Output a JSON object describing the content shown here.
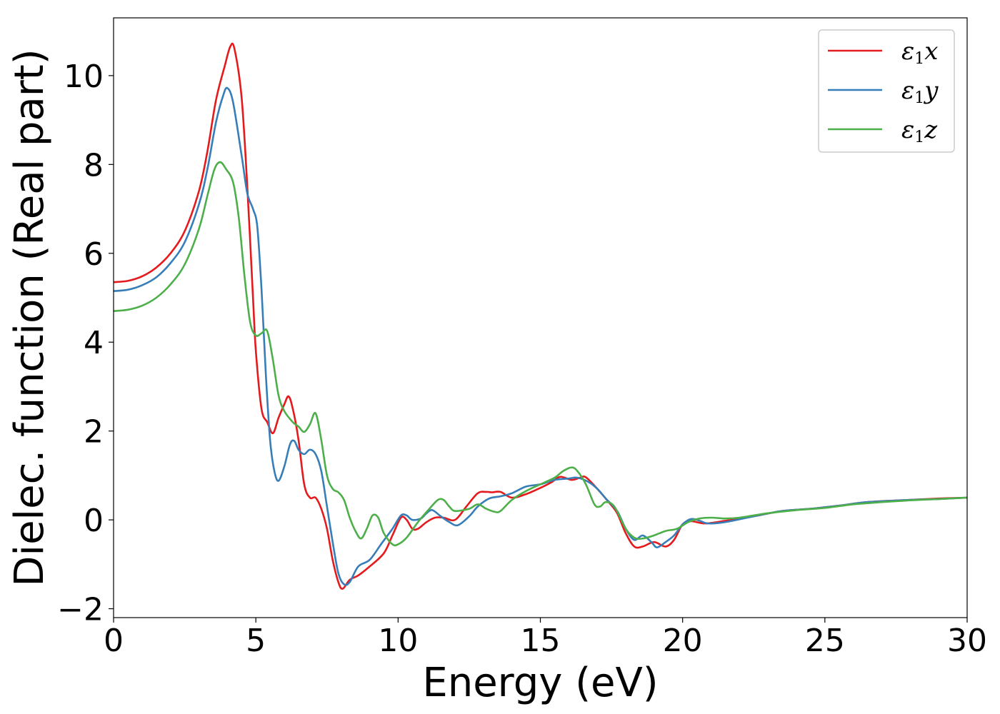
{
  "chart_data": {
    "type": "line",
    "title": "",
    "xlabel": "Energy (eV)",
    "ylabel": "Dielec. function (Real part)",
    "xlim": [
      0,
      30
    ],
    "ylim": [
      -2.2,
      11.3
    ],
    "xticks": [
      0,
      5,
      10,
      15,
      20,
      25,
      30
    ],
    "xtick_labels": [
      "0",
      "5",
      "10",
      "15",
      "20",
      "25",
      "30"
    ],
    "yticks": [
      -2,
      0,
      2,
      4,
      6,
      8,
      10
    ],
    "ytick_labels": [
      "−2",
      "0",
      "2",
      "4",
      "6",
      "8",
      "10"
    ],
    "grid": false,
    "legend_position": "top-right",
    "series": [
      {
        "name": "ε₁x",
        "legend_base": "ε",
        "legend_sub": "1",
        "legend_var": "x",
        "color": "#e41a1c",
        "points": [
          [
            0,
            5.35
          ],
          [
            0.5,
            5.38
          ],
          [
            1,
            5.48
          ],
          [
            1.5,
            5.68
          ],
          [
            2,
            6.0
          ],
          [
            2.5,
            6.5
          ],
          [
            3,
            7.4
          ],
          [
            3.3,
            8.3
          ],
          [
            3.6,
            9.45
          ],
          [
            3.9,
            10.2
          ],
          [
            4.1,
            10.65
          ],
          [
            4.25,
            10.6
          ],
          [
            4.5,
            9.5
          ],
          [
            4.7,
            7.5
          ],
          [
            4.9,
            5.0
          ],
          [
            5.0,
            3.8
          ],
          [
            5.2,
            2.5
          ],
          [
            5.4,
            2.2
          ],
          [
            5.6,
            1.95
          ],
          [
            5.8,
            2.3
          ],
          [
            6.0,
            2.6
          ],
          [
            6.15,
            2.78
          ],
          [
            6.3,
            2.5
          ],
          [
            6.5,
            1.8
          ],
          [
            6.7,
            0.8
          ],
          [
            6.9,
            0.5
          ],
          [
            7.1,
            0.5
          ],
          [
            7.3,
            0.25
          ],
          [
            7.5,
            -0.2
          ],
          [
            7.7,
            -0.9
          ],
          [
            7.9,
            -1.4
          ],
          [
            8.05,
            -1.55
          ],
          [
            8.3,
            -1.35
          ],
          [
            8.6,
            -1.25
          ],
          [
            9.0,
            -1.05
          ],
          [
            9.5,
            -0.75
          ],
          [
            9.8,
            -0.35
          ],
          [
            10.1,
            0.05
          ],
          [
            10.3,
            0.0
          ],
          [
            10.5,
            -0.2
          ],
          [
            10.7,
            -0.2
          ],
          [
            11.0,
            -0.05
          ],
          [
            11.3,
            0.05
          ],
          [
            11.6,
            0.05
          ],
          [
            12.0,
            0.0
          ],
          [
            12.4,
            0.3
          ],
          [
            12.8,
            0.6
          ],
          [
            13.1,
            0.63
          ],
          [
            13.3,
            0.62
          ],
          [
            13.6,
            0.63
          ],
          [
            14.0,
            0.5
          ],
          [
            14.5,
            0.58
          ],
          [
            15.0,
            0.72
          ],
          [
            15.4,
            0.85
          ],
          [
            15.7,
            0.97
          ],
          [
            16.1,
            0.9
          ],
          [
            16.4,
            0.95
          ],
          [
            16.6,
            0.96
          ],
          [
            17.0,
            0.7
          ],
          [
            17.4,
            0.4
          ],
          [
            17.7,
            0.15
          ],
          [
            18.0,
            -0.3
          ],
          [
            18.3,
            -0.6
          ],
          [
            18.6,
            -0.6
          ],
          [
            19.0,
            -0.5
          ],
          [
            19.4,
            -0.6
          ],
          [
            19.7,
            -0.45
          ],
          [
            20.0,
            -0.1
          ],
          [
            20.3,
            -0.03
          ],
          [
            20.8,
            -0.08
          ],
          [
            21.5,
            -0.02
          ],
          [
            22.5,
            0.08
          ],
          [
            23.5,
            0.2
          ],
          [
            24.5,
            0.25
          ],
          [
            25.5,
            0.32
          ],
          [
            26.5,
            0.4
          ],
          [
            28,
            0.45
          ],
          [
            29,
            0.48
          ],
          [
            30,
            0.5
          ]
        ]
      },
      {
        "name": "ε₁y",
        "legend_base": "ε",
        "legend_sub": "1",
        "legend_var": "y",
        "color": "#377eb8",
        "points": [
          [
            0,
            5.15
          ],
          [
            0.5,
            5.18
          ],
          [
            1,
            5.28
          ],
          [
            1.5,
            5.46
          ],
          [
            2,
            5.78
          ],
          [
            2.5,
            6.25
          ],
          [
            3,
            7.1
          ],
          [
            3.3,
            7.9
          ],
          [
            3.6,
            8.95
          ],
          [
            3.85,
            9.55
          ],
          [
            4.0,
            9.72
          ],
          [
            4.2,
            9.4
          ],
          [
            4.5,
            8.2
          ],
          [
            4.7,
            7.35
          ],
          [
            4.9,
            7.0
          ],
          [
            5.05,
            6.6
          ],
          [
            5.2,
            5.2
          ],
          [
            5.35,
            3.3
          ],
          [
            5.5,
            1.8
          ],
          [
            5.65,
            1.1
          ],
          [
            5.8,
            0.88
          ],
          [
            6.0,
            1.2
          ],
          [
            6.2,
            1.7
          ],
          [
            6.35,
            1.78
          ],
          [
            6.5,
            1.58
          ],
          [
            6.7,
            1.48
          ],
          [
            6.9,
            1.58
          ],
          [
            7.1,
            1.48
          ],
          [
            7.3,
            1.1
          ],
          [
            7.5,
            0.3
          ],
          [
            7.7,
            -0.5
          ],
          [
            7.9,
            -1.2
          ],
          [
            8.1,
            -1.45
          ],
          [
            8.3,
            -1.4
          ],
          [
            8.6,
            -1.05
          ],
          [
            9.0,
            -0.9
          ],
          [
            9.4,
            -0.55
          ],
          [
            9.8,
            -0.2
          ],
          [
            10.1,
            0.1
          ],
          [
            10.3,
            0.1
          ],
          [
            10.5,
            0.0
          ],
          [
            10.8,
            0.03
          ],
          [
            11.0,
            0.15
          ],
          [
            11.2,
            0.22
          ],
          [
            11.5,
            0.08
          ],
          [
            11.8,
            -0.05
          ],
          [
            12.1,
            -0.12
          ],
          [
            12.5,
            0.08
          ],
          [
            12.8,
            0.3
          ],
          [
            13.2,
            0.48
          ],
          [
            13.6,
            0.53
          ],
          [
            14.0,
            0.6
          ],
          [
            14.5,
            0.75
          ],
          [
            15.0,
            0.8
          ],
          [
            15.5,
            0.9
          ],
          [
            16.0,
            0.93
          ],
          [
            16.3,
            0.95
          ],
          [
            16.7,
            0.85
          ],
          [
            17.0,
            0.7
          ],
          [
            17.3,
            0.48
          ],
          [
            17.7,
            0.2
          ],
          [
            18.0,
            -0.2
          ],
          [
            18.3,
            -0.45
          ],
          [
            18.6,
            -0.35
          ],
          [
            18.9,
            -0.5
          ],
          [
            19.1,
            -0.62
          ],
          [
            19.4,
            -0.5
          ],
          [
            19.7,
            -0.35
          ],
          [
            20.0,
            -0.1
          ],
          [
            20.3,
            0.02
          ],
          [
            20.6,
            -0.02
          ],
          [
            20.9,
            -0.08
          ],
          [
            21.5,
            -0.05
          ],
          [
            22.5,
            0.08
          ],
          [
            23.5,
            0.2
          ],
          [
            24.5,
            0.25
          ],
          [
            25.5,
            0.32
          ],
          [
            26.5,
            0.4
          ],
          [
            28,
            0.45
          ],
          [
            29,
            0.47
          ],
          [
            30,
            0.5
          ]
        ]
      },
      {
        "name": "ε₁z",
        "legend_base": "ε",
        "legend_sub": "1",
        "legend_var": "z",
        "color": "#4daf4a",
        "points": [
          [
            0,
            4.7
          ],
          [
            0.5,
            4.73
          ],
          [
            1,
            4.82
          ],
          [
            1.5,
            5.0
          ],
          [
            2,
            5.3
          ],
          [
            2.5,
            5.75
          ],
          [
            3,
            6.55
          ],
          [
            3.3,
            7.3
          ],
          [
            3.55,
            7.9
          ],
          [
            3.75,
            8.05
          ],
          [
            3.95,
            7.9
          ],
          [
            4.2,
            7.6
          ],
          [
            4.4,
            6.8
          ],
          [
            4.6,
            5.5
          ],
          [
            4.8,
            4.45
          ],
          [
            5.0,
            4.15
          ],
          [
            5.2,
            4.2
          ],
          [
            5.4,
            4.25
          ],
          [
            5.6,
            3.6
          ],
          [
            5.8,
            2.8
          ],
          [
            6.0,
            2.45
          ],
          [
            6.3,
            2.2
          ],
          [
            6.5,
            2.1
          ],
          [
            6.7,
            1.98
          ],
          [
            6.9,
            2.15
          ],
          [
            7.1,
            2.4
          ],
          [
            7.3,
            1.8
          ],
          [
            7.5,
            1.0
          ],
          [
            7.7,
            0.7
          ],
          [
            7.9,
            0.62
          ],
          [
            8.1,
            0.45
          ],
          [
            8.3,
            0.05
          ],
          [
            8.5,
            -0.25
          ],
          [
            8.7,
            -0.42
          ],
          [
            8.9,
            -0.2
          ],
          [
            9.1,
            0.1
          ],
          [
            9.3,
            0.05
          ],
          [
            9.5,
            -0.3
          ],
          [
            9.8,
            -0.55
          ],
          [
            10.0,
            -0.55
          ],
          [
            10.3,
            -0.4
          ],
          [
            10.7,
            -0.05
          ],
          [
            11.1,
            0.25
          ],
          [
            11.4,
            0.45
          ],
          [
            11.6,
            0.45
          ],
          [
            11.8,
            0.3
          ],
          [
            12.0,
            0.2
          ],
          [
            12.5,
            0.25
          ],
          [
            12.8,
            0.35
          ],
          [
            13.1,
            0.25
          ],
          [
            13.4,
            0.18
          ],
          [
            13.6,
            0.2
          ],
          [
            14.0,
            0.45
          ],
          [
            14.5,
            0.65
          ],
          [
            15.0,
            0.8
          ],
          [
            15.5,
            0.95
          ],
          [
            15.8,
            1.1
          ],
          [
            16.1,
            1.18
          ],
          [
            16.3,
            1.1
          ],
          [
            16.6,
            0.8
          ],
          [
            16.9,
            0.35
          ],
          [
            17.1,
            0.3
          ],
          [
            17.3,
            0.4
          ],
          [
            17.6,
            0.3
          ],
          [
            18.0,
            -0.2
          ],
          [
            18.3,
            -0.4
          ],
          [
            18.6,
            -0.42
          ],
          [
            19.0,
            -0.35
          ],
          [
            19.4,
            -0.25
          ],
          [
            19.8,
            -0.2
          ],
          [
            20.2,
            -0.05
          ],
          [
            20.6,
            0.03
          ],
          [
            21.0,
            0.05
          ],
          [
            21.5,
            0.03
          ],
          [
            22.0,
            0.05
          ],
          [
            23.0,
            0.15
          ],
          [
            24.0,
            0.22
          ],
          [
            25.0,
            0.27
          ],
          [
            26.0,
            0.35
          ],
          [
            27.0,
            0.4
          ],
          [
            28,
            0.44
          ],
          [
            29,
            0.47
          ],
          [
            30,
            0.5
          ]
        ]
      }
    ]
  }
}
